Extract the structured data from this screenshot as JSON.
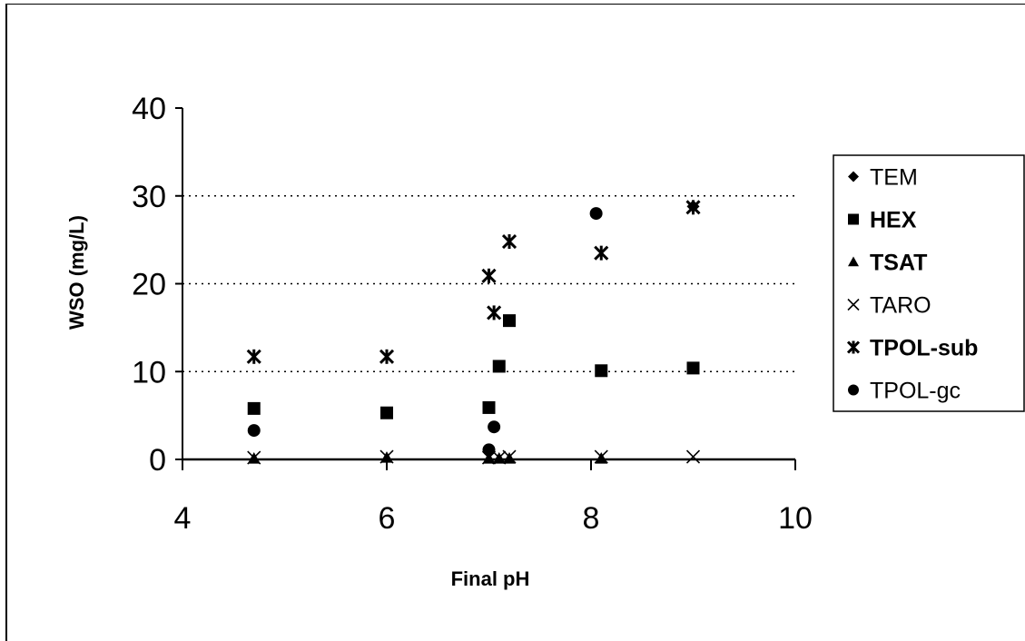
{
  "chart_data": {
    "type": "scatter",
    "title": "",
    "xlabel": "Final pH",
    "ylabel": "WSO (mg/L)",
    "xlim": [
      4,
      10
    ],
    "ylim": [
      0,
      40
    ],
    "xticks": [
      "4",
      "6",
      "8",
      "10"
    ],
    "yticks": [
      "0",
      "10",
      "20",
      "30",
      "40"
    ],
    "grid": "horizontal dotted at 10, 20, 30",
    "legend_position": "right",
    "series": [
      {
        "name": "TEM",
        "marker": "diamond",
        "points": [
          [
            9.0,
            28.8
          ]
        ]
      },
      {
        "name": "HEX",
        "marker": "square",
        "points": [
          [
            4.7,
            5.8
          ],
          [
            6.0,
            5.3
          ],
          [
            7.0,
            5.9
          ],
          [
            7.1,
            10.6
          ],
          [
            7.2,
            15.8
          ],
          [
            8.1,
            10.1
          ],
          [
            9.0,
            10.4
          ]
        ]
      },
      {
        "name": "TSAT",
        "marker": "triangle",
        "points": [
          [
            4.7,
            0.1
          ],
          [
            6.0,
            0.2
          ],
          [
            7.0,
            0.1
          ],
          [
            7.1,
            0.1
          ],
          [
            7.2,
            0.1
          ],
          [
            8.1,
            0.1
          ]
        ]
      },
      {
        "name": "TARO",
        "marker": "x",
        "points": [
          [
            4.7,
            0.2
          ],
          [
            6.0,
            0.3
          ],
          [
            7.0,
            0.2
          ],
          [
            7.1,
            0.2
          ],
          [
            7.2,
            0.3
          ],
          [
            8.1,
            0.3
          ],
          [
            9.0,
            0.3
          ]
        ]
      },
      {
        "name": "TPOL-sub",
        "marker": "star",
        "points": [
          [
            4.7,
            11.7
          ],
          [
            6.0,
            11.7
          ],
          [
            7.0,
            20.9
          ],
          [
            7.05,
            16.7
          ],
          [
            7.2,
            24.8
          ],
          [
            8.1,
            23.5
          ],
          [
            9.0,
            28.7
          ]
        ]
      },
      {
        "name": "TPOL-gc",
        "marker": "circle",
        "points": [
          [
            4.7,
            3.3
          ],
          [
            7.0,
            1.1
          ],
          [
            7.05,
            3.7
          ],
          [
            8.05,
            28.0
          ]
        ]
      }
    ]
  }
}
